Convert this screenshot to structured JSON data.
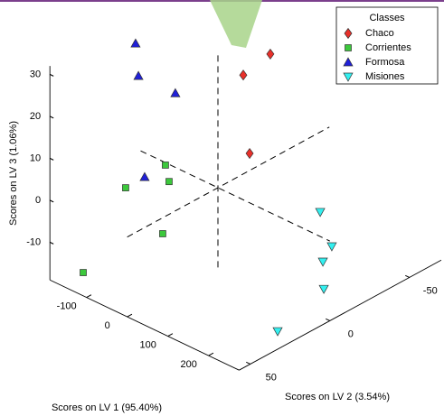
{
  "chart_data": {
    "type": "scatter3d",
    "xlabel": "Scores on LV 1 (95.40%)",
    "ylabel": "Scores on LV 2 (3.54%)",
    "zlabel": "Scores on LV 3 (1.06%)",
    "xlim": [
      -190,
      275
    ],
    "ylim": [
      -70,
      57
    ],
    "zlim": [
      -19,
      32
    ],
    "xticks": [
      -100,
      0,
      100,
      200
    ],
    "yticks": [
      -50,
      0,
      50
    ],
    "zticks": [
      -10,
      0,
      10,
      20,
      30
    ],
    "legend_title": "Classes",
    "legend": "upper right",
    "series": [
      {
        "name": "Chaco",
        "color": "#e8302a",
        "marker": "diamond",
        "x": [
          -50,
          -50,
          -50
        ],
        "y": [
          -45.7,
          -28.7,
          -32.7
        ],
        "z": [
          20.1,
          18.6,
          -0.9
        ]
      },
      {
        "name": "Corrientes",
        "color": "#3cc83c",
        "marker": "square",
        "x": [
          0,
          -50,
          0,
          0,
          -150
        ],
        "y": [
          33.0,
          45.2,
          30.7,
          34.7,
          46.3
        ],
        "z": [
          12.2,
          7.0,
          7.8,
          -3.8,
          -17.6
        ]
      },
      {
        "name": "Formosa",
        "color": "#2020d8",
        "marker": "triangle-up",
        "x": [
          -150,
          -150,
          -150,
          -150
        ],
        "y": [
          13.4,
          11.6,
          -11.6,
          7.7
        ],
        "z": [
          30.2,
          22.1,
          13.2,
          -2.8
        ]
      },
      {
        "name": "Misiones",
        "color": "#33f0f0",
        "marker": "triangle-down",
        "x": [
          150,
          150,
          150,
          250,
          250
        ],
        "y": [
          -25.9,
          -33.2,
          -27.6,
          -2.6,
          26.4
        ],
        "z": [
          -4.2,
          -13.9,
          -16.4,
          -13.1,
          -17.2
        ]
      }
    ]
  }
}
